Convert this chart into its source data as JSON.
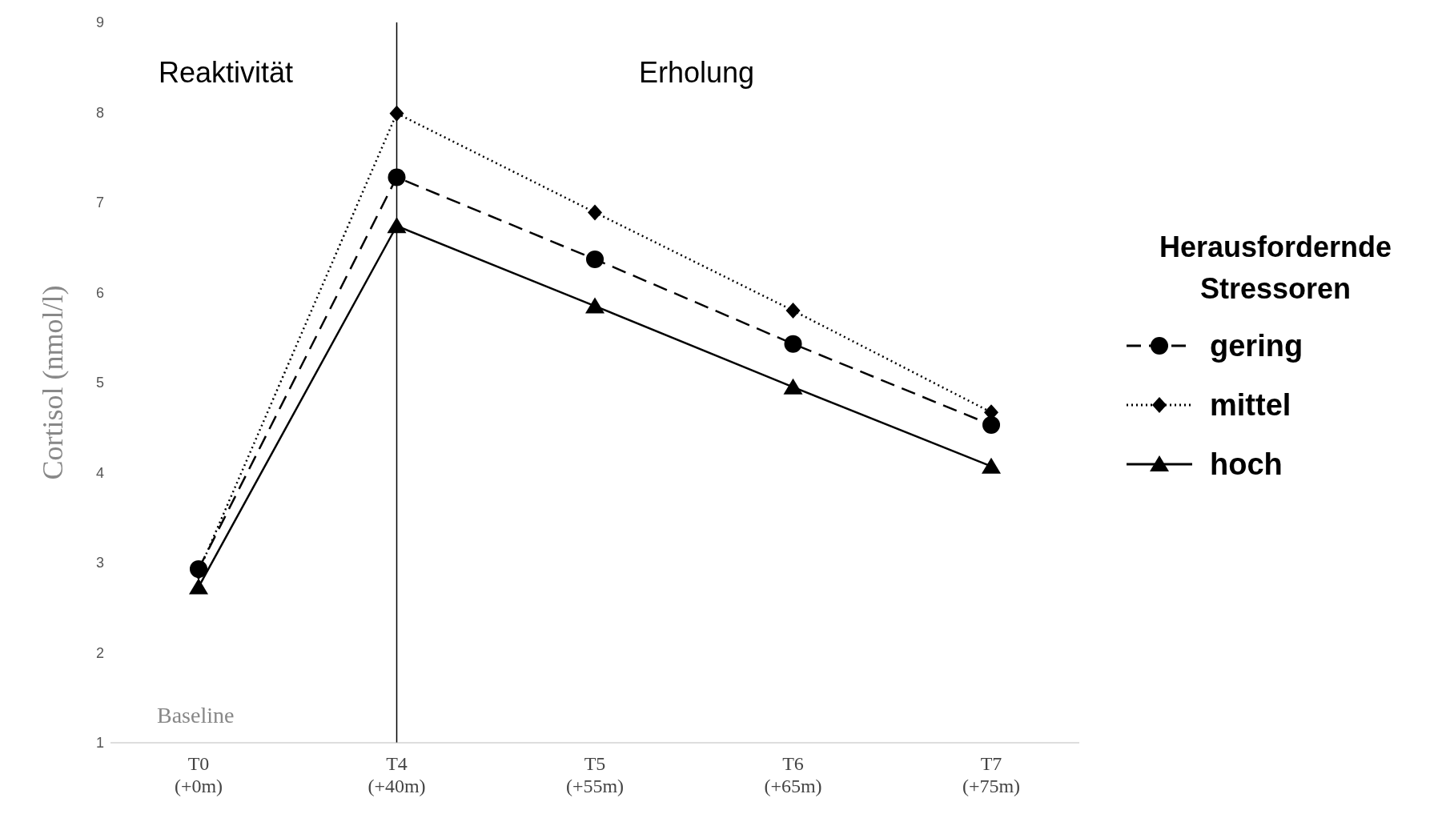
{
  "chart_data": {
    "type": "line",
    "ylabel": "Cortisol (nmol/l)",
    "legend_title": "Herausfordernde Stressoren",
    "legend": "right",
    "categories": [
      "T0 (+0m)",
      "T4 (+40m)",
      "T5 (+55m)",
      "T6 (+65m)",
      "T7 (+75m)"
    ],
    "ylim": [
      1,
      9
    ],
    "yticks": [
      1,
      2,
      3,
      4,
      5,
      6,
      7,
      8,
      9
    ],
    "grid": false,
    "ref_lines": [
      {
        "axis": "x",
        "value": "T4 (+40m)",
        "color": "#000000"
      }
    ],
    "annotations": [
      "Reaktivität",
      "Erholung",
      "Baseline"
    ],
    "series": [
      {
        "name": "gering",
        "color": "#000000",
        "marker": "circle",
        "line_style": "dashed",
        "values": [
          2.93,
          7.28,
          6.37,
          5.43,
          4.53
        ]
      },
      {
        "name": "mittel",
        "color": "#000000",
        "marker": "diamond",
        "line_style": "dotted",
        "values": [
          2.9,
          7.99,
          6.89,
          5.8,
          4.67
        ]
      },
      {
        "name": "hoch",
        "color": "#000000",
        "marker": "triangle",
        "line_style": "solid",
        "values": [
          2.73,
          6.74,
          5.85,
          4.95,
          4.07
        ]
      }
    ]
  }
}
